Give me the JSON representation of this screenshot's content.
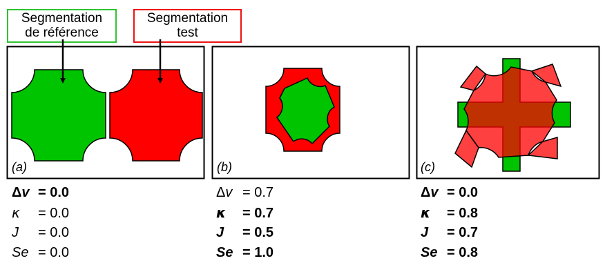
{
  "legend": {
    "reference": {
      "line1": "Segmentation",
      "line2": "de référence",
      "color": "#2fc42f"
    },
    "test": {
      "line1": "Segmentation",
      "line2": "test",
      "color": "#ee1111"
    }
  },
  "colors": {
    "green": "#00c400",
    "red": "#ff0000",
    "overlap": "#cc2200"
  },
  "panels": [
    {
      "label": "(a)",
      "metrics": [
        {
          "symbol": "Δ",
          "var": "v",
          "value": "= 0.0",
          "bold": true
        },
        {
          "symbol": "",
          "var": "κ",
          "value": "= 0.0",
          "bold": false
        },
        {
          "symbol": "",
          "var": "J",
          "value": "= 0.0",
          "bold": false
        },
        {
          "symbol": "",
          "var": "Se",
          "value": "= 0.0",
          "bold": false
        }
      ]
    },
    {
      "label": "(b)",
      "metrics": [
        {
          "symbol": "Δ",
          "var": "v",
          "value": "= 0.7",
          "bold": false
        },
        {
          "symbol": "",
          "var": "κ",
          "value": "= 0.7",
          "bold": true
        },
        {
          "symbol": "",
          "var": "J",
          "value": "= 0.5",
          "bold": true
        },
        {
          "symbol": "",
          "var": "Se",
          "value": "= 1.0",
          "bold": true
        }
      ]
    },
    {
      "label": "(c)",
      "metrics": [
        {
          "symbol": "Δ",
          "var": "v",
          "value": "= 0.0",
          "bold": true
        },
        {
          "symbol": "",
          "var": "κ",
          "value": "= 0.8",
          "bold": true
        },
        {
          "symbol": "",
          "var": "J",
          "value": "= 0.7",
          "bold": true
        },
        {
          "symbol": "",
          "var": "Se",
          "value": "= 0.8",
          "bold": true
        }
      ]
    }
  ]
}
